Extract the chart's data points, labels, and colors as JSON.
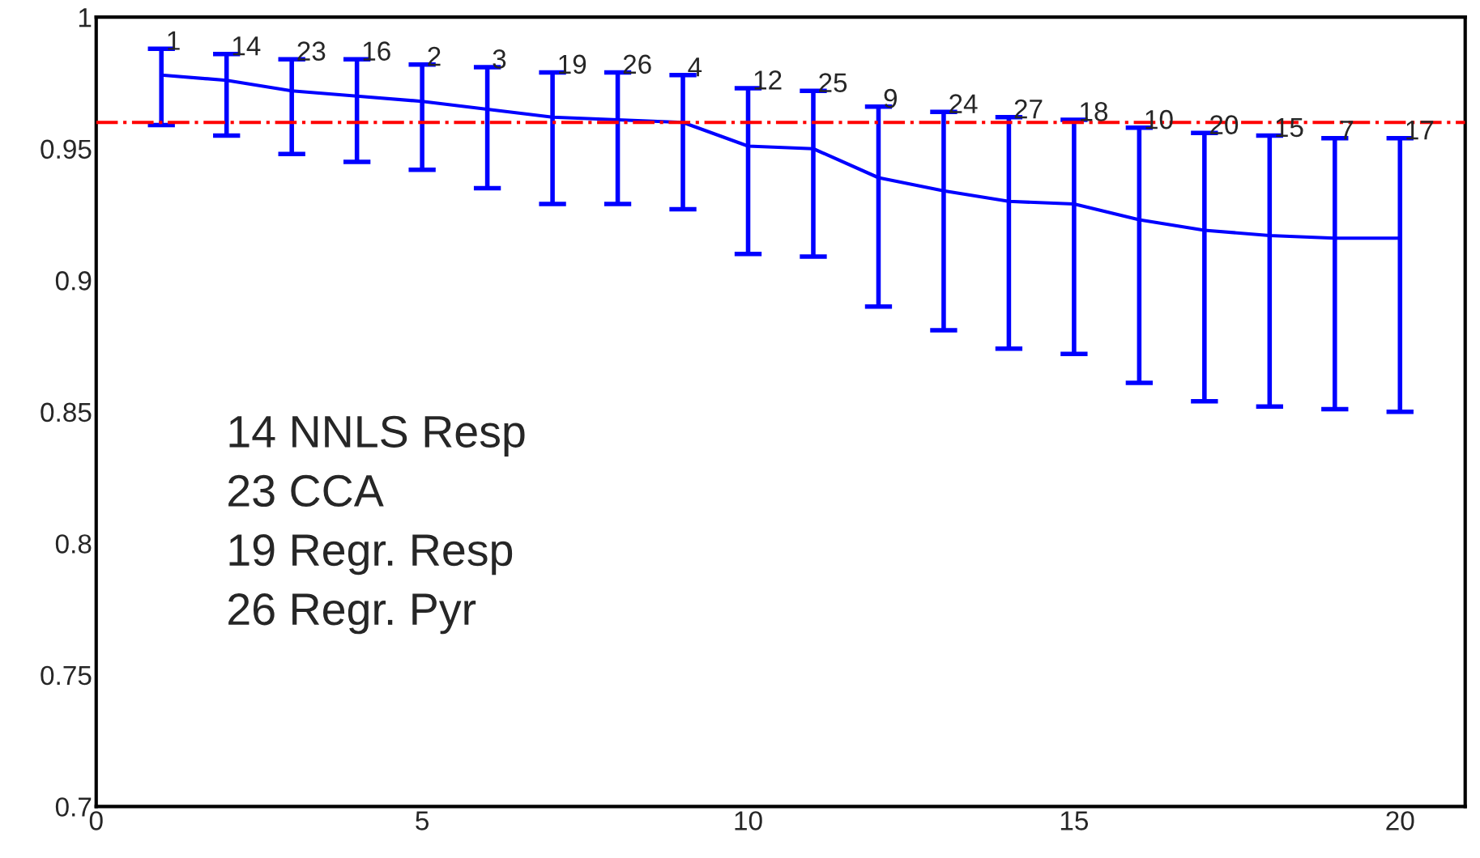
{
  "chart_data": {
    "type": "line",
    "x": [
      1,
      2,
      3,
      4,
      5,
      6,
      7,
      8,
      9,
      10,
      11,
      12,
      13,
      14,
      15,
      16,
      17,
      18,
      19,
      20
    ],
    "series": [
      {
        "color": "#0000ff",
        "line_style": "solid",
        "marker": "none",
        "values": [
          0.978,
          0.976,
          0.972,
          0.97,
          0.968,
          0.965,
          0.962,
          0.961,
          0.96,
          0.951,
          0.95,
          0.939,
          0.934,
          0.93,
          0.929,
          0.923,
          0.919,
          0.917,
          0.916,
          0.916
        ],
        "errors": [
          [
            0.959,
            0.988
          ],
          [
            0.955,
            0.986
          ],
          [
            0.948,
            0.984
          ],
          [
            0.945,
            0.984
          ],
          [
            0.942,
            0.982
          ],
          [
            0.935,
            0.981
          ],
          [
            0.929,
            0.979
          ],
          [
            0.929,
            0.979
          ],
          [
            0.927,
            0.978
          ],
          [
            0.91,
            0.973
          ],
          [
            0.909,
            0.972
          ],
          [
            0.89,
            0.966
          ],
          [
            0.881,
            0.964
          ],
          [
            0.874,
            0.962
          ],
          [
            0.872,
            0.961
          ],
          [
            0.861,
            0.958
          ],
          [
            0.854,
            0.956
          ],
          [
            0.852,
            0.955
          ],
          [
            0.851,
            0.954
          ],
          [
            0.85,
            0.954
          ]
        ]
      }
    ],
    "xlim": [
      0,
      21
    ],
    "ylim": [
      0.7,
      1
    ],
    "xticks": [
      0,
      5,
      10,
      15,
      20
    ],
    "yticks": [
      0.7,
      0.75,
      0.8,
      0.85,
      0.9,
      0.95,
      1
    ],
    "grid": false,
    "legend": false,
    "ref_lines": [
      {
        "axis": "y",
        "value": 0.96,
        "color": "#ff0000",
        "line_style": "dashdot"
      }
    ],
    "annotations": [
      {
        "text": "1",
        "x": 1,
        "y": 0.988
      },
      {
        "text": "14",
        "x": 2,
        "y": 0.986
      },
      {
        "text": "23",
        "x": 3,
        "y": 0.984
      },
      {
        "text": "16",
        "x": 4,
        "y": 0.984
      },
      {
        "text": "2",
        "x": 5,
        "y": 0.982
      },
      {
        "text": "3",
        "x": 6,
        "y": 0.981
      },
      {
        "text": "19",
        "x": 7,
        "y": 0.979
      },
      {
        "text": "26",
        "x": 8,
        "y": 0.979
      },
      {
        "text": "4",
        "x": 9,
        "y": 0.978
      },
      {
        "text": "12",
        "x": 10,
        "y": 0.973
      },
      {
        "text": "25",
        "x": 11,
        "y": 0.972
      },
      {
        "text": "9",
        "x": 12,
        "y": 0.966
      },
      {
        "text": "24",
        "x": 13,
        "y": 0.964
      },
      {
        "text": "27",
        "x": 14,
        "y": 0.962
      },
      {
        "text": "18",
        "x": 15,
        "y": 0.961
      },
      {
        "text": "10",
        "x": 16,
        "y": 0.958
      },
      {
        "text": "20",
        "x": 17,
        "y": 0.956
      },
      {
        "text": "15",
        "x": 18,
        "y": 0.955
      },
      {
        "text": "7",
        "x": 19,
        "y": 0.954
      },
      {
        "text": "17",
        "x": 20,
        "y": 0.954
      },
      "14 NNLS Resp",
      "23 CCA",
      "19 Regr. Resp",
      "26 Regr. Pyr"
    ]
  }
}
